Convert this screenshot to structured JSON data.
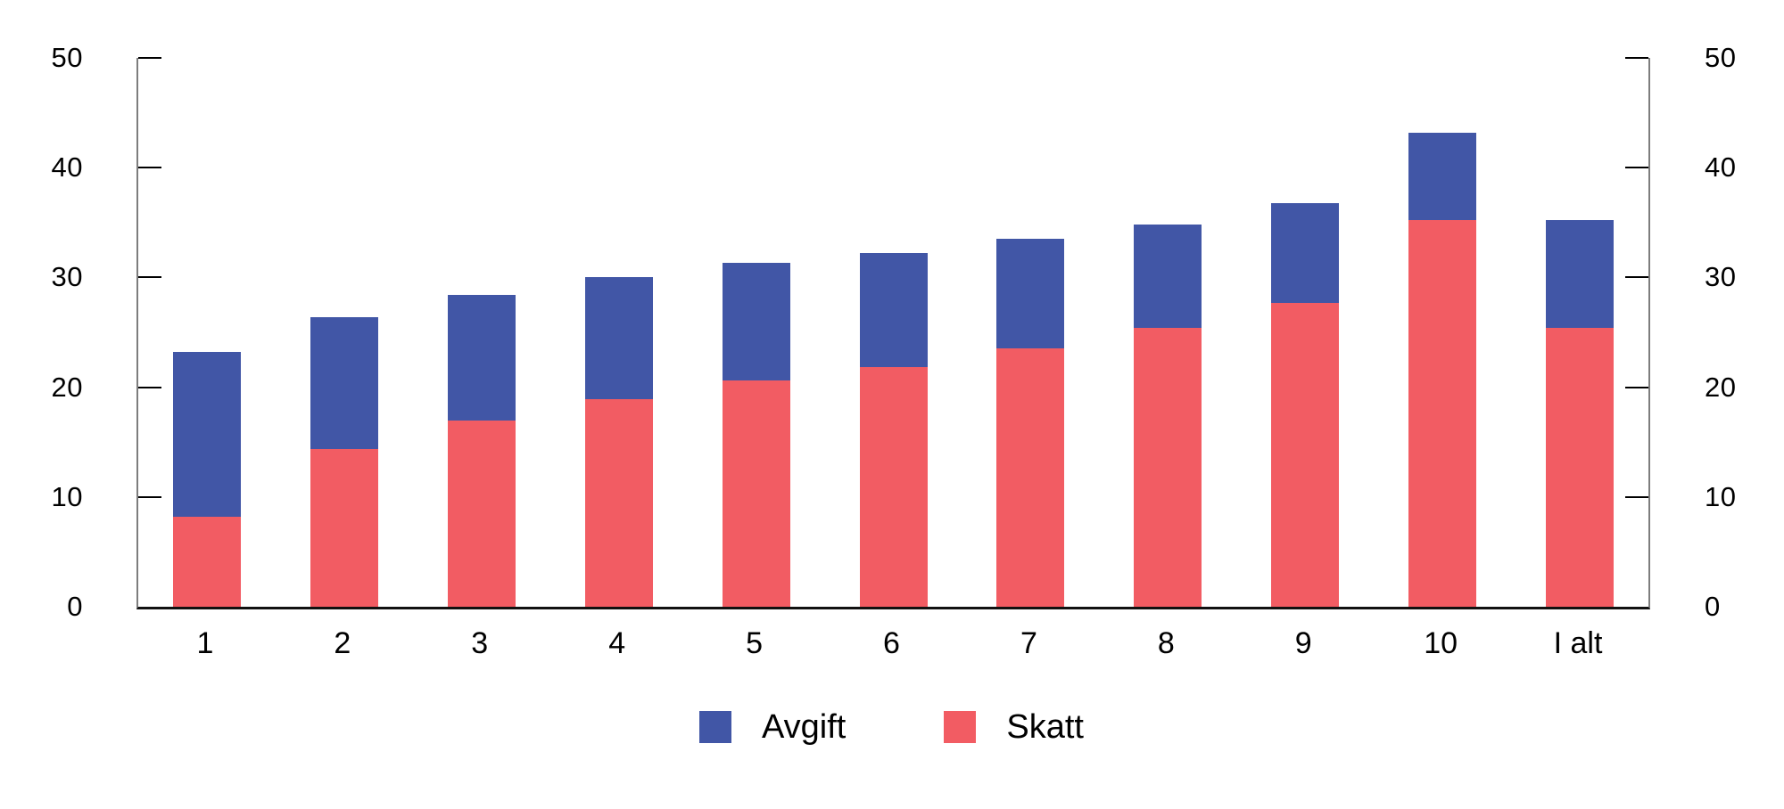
{
  "chart_data": {
    "type": "bar",
    "stacked": true,
    "title": "",
    "categories": [
      "1",
      "2",
      "3",
      "4",
      "5",
      "6",
      "7",
      "8",
      "9",
      "10",
      "I alt"
    ],
    "series": [
      {
        "name": "Avgift",
        "color": "#4156A6",
        "values": [
          15.0,
          12.0,
          11.4,
          11.1,
          10.7,
          10.4,
          10.0,
          9.4,
          9.1,
          8.0,
          9.8
        ]
      },
      {
        "name": "Skatt",
        "color": "#F25C63",
        "values": [
          8.2,
          14.4,
          17.0,
          18.9,
          20.6,
          21.8,
          23.5,
          25.4,
          27.7,
          35.2,
          25.4
        ]
      }
    ],
    "stack_bottom_to_top": [
      "Skatt",
      "Avgift"
    ],
    "xlabel": "",
    "ylabel": "",
    "ylim": [
      0,
      50
    ],
    "yticks": [
      0,
      10,
      20,
      30,
      40,
      50
    ],
    "y_axis_sides": [
      "left",
      "right"
    ],
    "grid": false,
    "legend_position": "bottom"
  },
  "colors": {
    "axis_line": "#7d7d7d",
    "baseline": "#111111",
    "tick": "#000000",
    "text": "#000000",
    "background": "#ffffff"
  }
}
